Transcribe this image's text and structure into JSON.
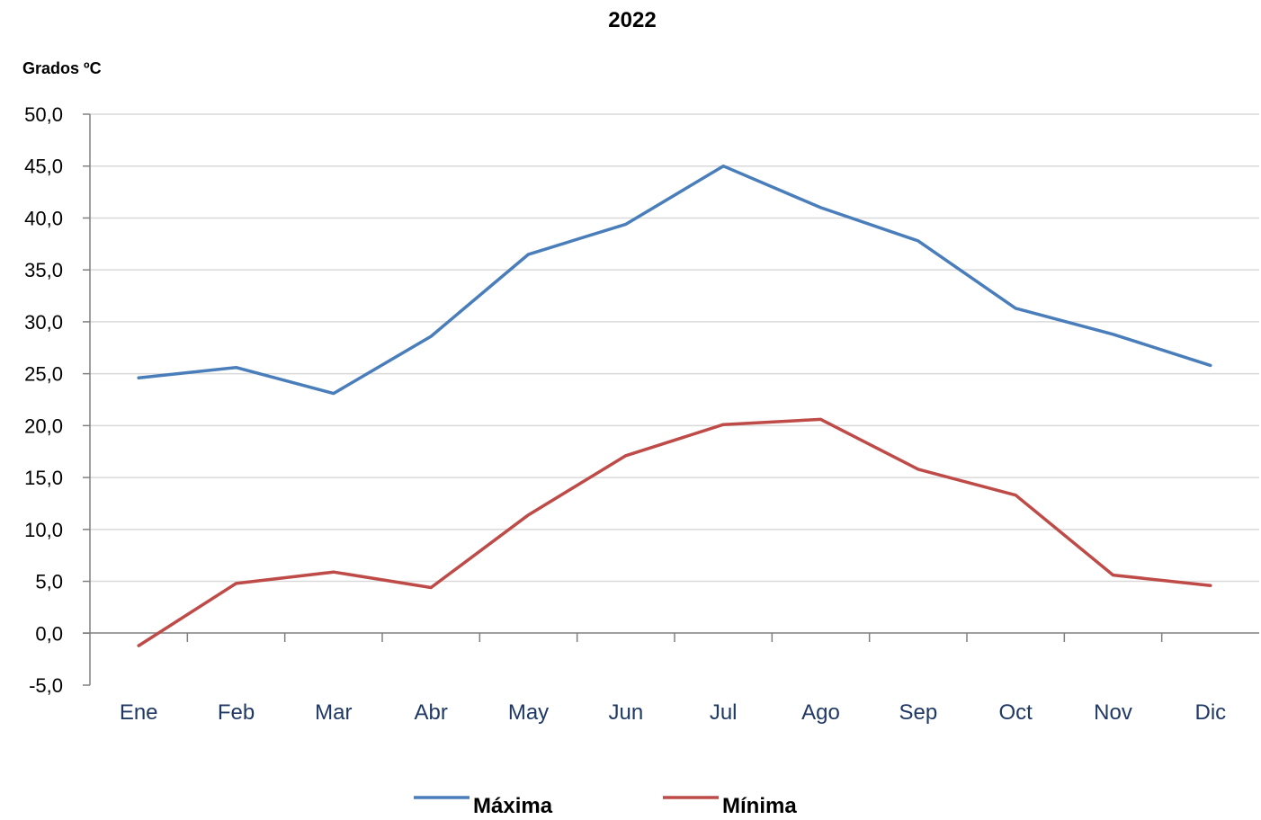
{
  "chart_data": {
    "type": "line",
    "title": "2022",
    "ylabel": "Grados ºC",
    "xlabel": "",
    "categories": [
      "Ene",
      "Feb",
      "Mar",
      "Abr",
      "May",
      "Jun",
      "Jul",
      "Ago",
      "Sep",
      "Oct",
      "Nov",
      "Dic"
    ],
    "ylim": [
      -5,
      50
    ],
    "ytick_step": 5,
    "ytick_labels": [
      "-5,0",
      "0,0",
      "5,0",
      "10,0",
      "15,0",
      "20,0",
      "25,0",
      "30,0",
      "35,0",
      "40,0",
      "45,0",
      "50,0"
    ],
    "grid": true,
    "legend_position": "bottom",
    "series": [
      {
        "name": "Máxima",
        "color": "#4a7ebb",
        "values": [
          24.6,
          25.6,
          23.1,
          28.6,
          36.5,
          39.4,
          45.0,
          41.0,
          37.8,
          31.3,
          28.8,
          25.8
        ]
      },
      {
        "name": "Mínima",
        "color": "#be4b48",
        "values": [
          -1.2,
          4.8,
          5.9,
          4.4,
          11.4,
          17.1,
          20.1,
          20.6,
          15.8,
          13.3,
          5.6,
          4.6
        ]
      }
    ]
  }
}
